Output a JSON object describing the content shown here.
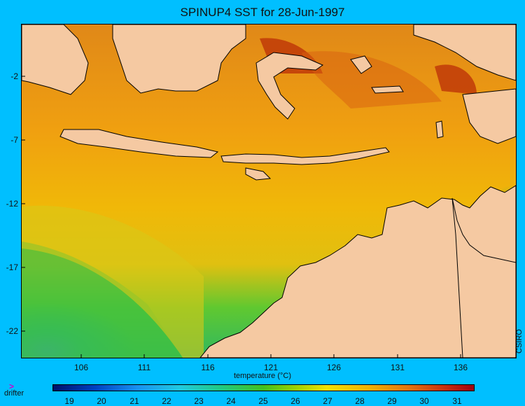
{
  "title": "SPINUP4 SST for 28-Jun-1997",
  "credit": "CSIRO",
  "lat_labels": [
    "-2",
    "-7",
    "-12",
    "-17",
    "-22"
  ],
  "lon_labels": [
    "106",
    "111",
    "116",
    "121",
    "126",
    "131",
    "136"
  ],
  "colorbar": {
    "title": "temperature (°C)",
    "ticks": [
      "19",
      "20",
      "21",
      "22",
      "23",
      "24",
      "25",
      "26",
      "27",
      "28",
      "29",
      "30",
      "31"
    ]
  },
  "legend": {
    "marker": ">",
    "label": "drifter"
  },
  "colors": {
    "background": "#00bfff",
    "land": "#f5c9a2",
    "warm": "#e08010",
    "hot": "#c03a08",
    "mid": "#f0c000",
    "cool": "#30c030",
    "cold": "#2080e0"
  }
}
